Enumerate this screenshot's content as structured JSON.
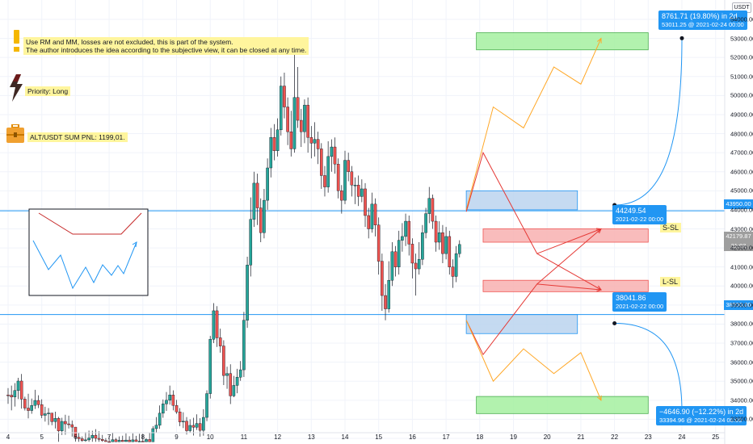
{
  "currency_badge": "USDT",
  "notes": {
    "rm_line1": "Use RM and MM, losses are not excluded, this is part of the system.",
    "rm_line2": "The author introduces the idea according to the subjective view, it can be closed at any time.",
    "priority": "Priority: Long",
    "pnl": "ALT/USDT SUM PNL: 1199,01."
  },
  "price_tags": {
    "upper_line": "43950.00",
    "current": "42179.87",
    "current_time": "21:02",
    "lower_line": "38500.00"
  },
  "levels": {
    "s_sl": "S-SL",
    "l_sl": "L-SL"
  },
  "callouts": {
    "up_change": "8761.71 (19.80%) in 2d",
    "up_target": "53011.25 @ 2021-02-24  00:00",
    "up_start_price": "44249.54",
    "up_start_time": "2021-02-22 00:00",
    "down_start_price": "38041.86",
    "down_start_time": "2021-02-22 00:00",
    "down_change": "−4646.90 (−12.22%) in 2d",
    "down_target": "33394.96 @ 2021-02-24  00:00"
  },
  "colors": {
    "up_candle": "#26a69a",
    "down_candle": "#ef5350",
    "level_line": "#2196f3",
    "current_tag": "#9e9e9e",
    "green_zone": "#a5f0a0",
    "red_zone": "#f8b0b0",
    "blue_zone": "#bbd4ee"
  },
  "chart_data": {
    "type": "candlestick",
    "x_ticks": [
      "4",
      "5",
      "6",
      "7",
      "8",
      "9",
      "10",
      "11",
      "12",
      "13",
      "14",
      "15",
      "16",
      "17",
      "18",
      "19",
      "20",
      "21",
      "22",
      "23",
      "24",
      "25"
    ],
    "y_ticks": [
      32000,
      33000,
      34000,
      35000,
      36000,
      37000,
      38000,
      39000,
      40000,
      41000,
      42000,
      43000,
      44000,
      45000,
      46000,
      47000,
      48000,
      49000,
      50000,
      51000,
      52000,
      53000,
      54000
    ],
    "ylim": [
      31800,
      54800
    ],
    "xlim": [
      4,
      25
    ],
    "candles": [
      [
        4.0,
        34280,
        34270,
        34640,
        33810
      ],
      [
        4.1,
        34270,
        34170,
        34770,
        33470
      ],
      [
        4.2,
        34170,
        34510,
        34900,
        33670
      ],
      [
        4.3,
        34510,
        35010,
        35180,
        34060
      ],
      [
        4.4,
        35010,
        34060,
        35380,
        33560
      ],
      [
        4.5,
        34060,
        33590,
        34190,
        33460
      ],
      [
        4.6,
        33590,
        33460,
        34340,
        33050
      ],
      [
        4.7,
        33460,
        33730,
        34090,
        33290
      ],
      [
        4.8,
        33730,
        33990,
        34550,
        33540
      ],
      [
        4.9,
        33990,
        33770,
        34260,
        33590
      ],
      [
        5.0,
        33770,
        33210,
        34050,
        33060
      ],
      [
        5.1,
        33210,
        33290,
        33660,
        32880
      ],
      [
        5.2,
        33290,
        33330,
        33590,
        32700
      ],
      [
        5.3,
        33330,
        32880,
        33230,
        32690
      ],
      [
        5.4,
        32880,
        33050,
        33400,
        32520
      ],
      [
        5.5,
        33050,
        32390,
        33130,
        31820
      ],
      [
        5.6,
        32390,
        32890,
        33080,
        32180
      ],
      [
        5.7,
        32890,
        32760,
        33240,
        32190
      ],
      [
        5.8,
        32760,
        32720,
        33190,
        32520
      ],
      [
        5.9,
        32720,
        32590,
        32940,
        32090
      ],
      [
        6.0,
        32590,
        32060,
        32560,
        31830
      ],
      [
        6.1,
        32060,
        31980,
        32300,
        31820
      ],
      [
        6.2,
        31980,
        31880,
        32100,
        31820
      ],
      [
        6.3,
        31880,
        31920,
        32330,
        31820
      ],
      [
        6.4,
        31920,
        32020,
        32410,
        31820
      ],
      [
        6.5,
        32020,
        32160,
        32400,
        31820
      ],
      [
        6.6,
        32160,
        32000,
        32480,
        31820
      ],
      [
        6.7,
        32000,
        31950,
        32370,
        31820
      ],
      [
        6.8,
        31950,
        31880,
        32180,
        31820
      ],
      [
        6.9,
        31880,
        31830,
        32010,
        31820
      ],
      [
        7.0,
        31830,
        31820,
        32140,
        31820
      ],
      [
        7.1,
        31820,
        31930,
        32290,
        31820
      ],
      [
        7.2,
        31930,
        31820,
        32020,
        31820
      ],
      [
        7.3,
        31820,
        31900,
        32100,
        31820
      ],
      [
        7.4,
        31900,
        31830,
        32140,
        31820
      ],
      [
        7.5,
        31830,
        31910,
        32260,
        31820
      ],
      [
        7.6,
        31910,
        31820,
        32110,
        31820
      ],
      [
        7.7,
        31820,
        31920,
        32260,
        31820
      ],
      [
        7.8,
        31920,
        31830,
        32130,
        31820
      ],
      [
        7.9,
        31830,
        31850,
        32240,
        31820
      ],
      [
        8.0,
        31850,
        31820,
        32240,
        31820
      ],
      [
        8.1,
        31820,
        31940,
        32010,
        31820
      ],
      [
        8.2,
        31940,
        31820,
        32280,
        31820
      ],
      [
        8.3,
        31820,
        32510,
        32640,
        31820
      ],
      [
        8.4,
        32510,
        32690,
        33120,
        32300
      ],
      [
        8.5,
        32690,
        33320,
        33730,
        32500
      ],
      [
        8.6,
        33320,
        33810,
        34040,
        33080
      ],
      [
        8.7,
        33810,
        34000,
        34430,
        33440
      ],
      [
        8.8,
        34000,
        34280,
        34770,
        33770
      ],
      [
        8.9,
        34280,
        33730,
        34520,
        33470
      ],
      [
        9.0,
        33730,
        33390,
        34020,
        33290
      ],
      [
        9.1,
        33390,
        32860,
        33590,
        32640
      ],
      [
        9.2,
        32860,
        32900,
        33370,
        32540
      ],
      [
        9.3,
        32900,
        32400,
        33120,
        32200
      ],
      [
        9.4,
        32400,
        32680,
        33000,
        32300
      ],
      [
        9.5,
        32680,
        32580,
        33080,
        32150
      ],
      [
        9.6,
        32580,
        32780,
        33260,
        32440
      ],
      [
        9.7,
        32780,
        32420,
        33060,
        32090
      ],
      [
        9.8,
        32420,
        33100,
        33530,
        32140
      ],
      [
        9.9,
        33100,
        34350,
        34520,
        32900
      ],
      [
        10.0,
        34350,
        37200,
        37380,
        34090
      ],
      [
        10.1,
        37200,
        38700,
        39100,
        37000
      ],
      [
        10.2,
        38700,
        37280,
        38940,
        36800
      ],
      [
        10.3,
        37280,
        36850,
        37760,
        36500
      ],
      [
        10.4,
        36850,
        35300,
        37150,
        34800
      ],
      [
        10.5,
        35300,
        35400,
        35760,
        34600
      ],
      [
        10.6,
        35400,
        34230,
        35890,
        33800
      ],
      [
        10.7,
        34230,
        34780,
        35280,
        34160
      ],
      [
        10.8,
        34780,
        35210,
        35650,
        34370
      ],
      [
        10.9,
        35210,
        35600,
        36060,
        35020
      ],
      [
        11.0,
        35600,
        38200,
        38640,
        35220
      ],
      [
        11.1,
        38200,
        41100,
        41540,
        37800
      ],
      [
        11.2,
        41100,
        43500,
        44650,
        40500
      ],
      [
        11.3,
        43500,
        45400,
        46000,
        43100
      ],
      [
        11.4,
        45400,
        44100,
        45900,
        43200
      ],
      [
        11.5,
        44100,
        42800,
        44600,
        42300
      ],
      [
        11.6,
        42800,
        44500,
        45100,
        42500
      ],
      [
        11.7,
        44500,
        46200,
        46700,
        44000
      ],
      [
        11.8,
        46200,
        47800,
        48300,
        45700
      ],
      [
        11.9,
        47800,
        47100,
        48500,
        46600
      ],
      [
        12.0,
        47100,
        48200,
        48800,
        46800
      ],
      [
        12.1,
        48200,
        50500,
        51000,
        47900
      ],
      [
        12.2,
        50500,
        49400,
        51200,
        48800
      ],
      [
        12.3,
        49400,
        48100,
        49900,
        47400
      ],
      [
        12.4,
        48100,
        47200,
        49200,
        46800
      ],
      [
        12.5,
        47200,
        49900,
        52500,
        47000
      ],
      [
        12.6,
        49900,
        48700,
        51500,
        48300
      ],
      [
        12.7,
        48700,
        48100,
        49300,
        47300
      ],
      [
        12.8,
        48100,
        49500,
        49800,
        47500
      ],
      [
        12.9,
        49500,
        47800,
        49900,
        47000
      ],
      [
        13.0,
        47800,
        47500,
        48400,
        46700
      ],
      [
        13.1,
        47500,
        47700,
        48600,
        46800
      ],
      [
        13.2,
        47700,
        47200,
        48100,
        46400
      ],
      [
        13.3,
        47200,
        45800,
        47500,
        45100
      ],
      [
        13.4,
        45800,
        45200,
        46300,
        44700
      ],
      [
        13.5,
        45200,
        46800,
        47600,
        44900
      ],
      [
        13.6,
        46800,
        47300,
        47700,
        46000
      ],
      [
        13.7,
        47300,
        46400,
        47800,
        45900
      ],
      [
        13.8,
        46400,
        45000,
        46700,
        44600
      ],
      [
        13.9,
        45000,
        44500,
        45300,
        43800
      ],
      [
        14.0,
        44500,
        46600,
        47100,
        44300
      ],
      [
        14.1,
        46600,
        46000,
        47000,
        45500
      ],
      [
        14.2,
        46000,
        45300,
        46300,
        44700
      ],
      [
        14.3,
        45300,
        45300,
        45700,
        44300
      ],
      [
        14.4,
        45300,
        44700,
        45800,
        44200
      ],
      [
        14.5,
        44700,
        45100,
        45600,
        44400
      ],
      [
        14.6,
        45100,
        43700,
        45400,
        43100
      ],
      [
        14.7,
        43700,
        43000,
        44100,
        42500
      ],
      [
        14.8,
        43000,
        44300,
        44900,
        42800
      ],
      [
        14.9,
        44300,
        43200,
        44600,
        42600
      ],
      [
        15.0,
        43200,
        41300,
        43600,
        40600
      ],
      [
        15.1,
        41300,
        39500,
        41700,
        38700
      ],
      [
        15.2,
        39500,
        38800,
        40100,
        38200
      ],
      [
        15.3,
        38800,
        40300,
        41300,
        38600
      ],
      [
        15.4,
        40300,
        41800,
        42300,
        40000
      ],
      [
        15.5,
        41800,
        41000,
        42100,
        40500
      ],
      [
        15.6,
        41000,
        42400,
        42900,
        40600
      ],
      [
        15.7,
        42400,
        42600,
        43300,
        41800
      ],
      [
        15.8,
        42600,
        43400,
        43800,
        42100
      ],
      [
        15.9,
        43400,
        42200,
        43700,
        41600
      ],
      [
        16.0,
        42200,
        41200,
        42500,
        40400
      ],
      [
        16.1,
        41200,
        40900,
        41700,
        39500
      ],
      [
        16.2,
        40900,
        41400,
        42300,
        40600
      ],
      [
        16.3,
        41400,
        42800,
        43200,
        41100
      ],
      [
        16.4,
        42800,
        43800,
        44100,
        42500
      ],
      [
        16.5,
        43800,
        44600,
        45200,
        43300
      ],
      [
        16.6,
        44600,
        43400,
        44800,
        43000
      ],
      [
        16.7,
        43400,
        42300,
        43700,
        41800
      ],
      [
        16.8,
        42300,
        42800,
        43400,
        41900
      ],
      [
        16.9,
        42800,
        41700,
        43200,
        41200
      ],
      [
        17.0,
        41700,
        42600,
        43100,
        41400
      ],
      [
        17.1,
        42600,
        41000,
        42900,
        40600
      ],
      [
        17.2,
        41000,
        40500,
        41400,
        39900
      ],
      [
        17.3,
        40500,
        41700,
        42100,
        40200
      ],
      [
        17.4,
        41700,
        42180,
        42400,
        41500
      ]
    ],
    "horizontal_levels": [
      43950,
      38500
    ],
    "zones": [
      {
        "kind": "green",
        "x": [
          17.9,
          23.0
        ],
        "y": [
          52400,
          53300
        ]
      },
      {
        "kind": "blue",
        "x": [
          17.6,
          20.9
        ],
        "y": [
          44000,
          45000
        ]
      },
      {
        "kind": "red",
        "x": [
          18.1,
          23.0
        ],
        "y": [
          42300,
          43000
        ],
        "label": "S-SL"
      },
      {
        "kind": "red",
        "x": [
          18.1,
          23.0
        ],
        "y": [
          39700,
          40300
        ],
        "label": "L-SL"
      },
      {
        "kind": "blue",
        "x": [
          17.6,
          20.9
        ],
        "y": [
          37500,
          38500
        ]
      },
      {
        "kind": "green",
        "x": [
          17.9,
          23.0
        ],
        "y": [
          33300,
          34200
        ]
      }
    ],
    "projections": [
      {
        "color": "orange",
        "points": [
          [
            17.6,
            44000
          ],
          [
            18.4,
            49400
          ],
          [
            19.3,
            48300
          ],
          [
            20.2,
            51500
          ],
          [
            21.0,
            50600
          ],
          [
            21.6,
            53000
          ]
        ]
      },
      {
        "color": "red",
        "points": [
          [
            17.6,
            43900
          ],
          [
            18.1,
            47000
          ],
          [
            19.7,
            41700
          ],
          [
            21.6,
            43000
          ]
        ]
      },
      {
        "color": "red",
        "points": [
          [
            17.6,
            38200
          ],
          [
            18.1,
            36400
          ],
          [
            19.7,
            40100
          ],
          [
            21.6,
            39800
          ]
        ]
      },
      {
        "color": "red",
        "points": [
          [
            19.7,
            41700
          ],
          [
            21.6,
            39800
          ]
        ]
      },
      {
        "color": "red",
        "points": [
          [
            19.7,
            40100
          ],
          [
            21.6,
            43000
          ]
        ]
      },
      {
        "color": "orange",
        "points": [
          [
            17.6,
            38200
          ],
          [
            18.4,
            35000
          ],
          [
            19.3,
            36700
          ],
          [
            20.2,
            35400
          ],
          [
            21.0,
            36500
          ],
          [
            21.6,
            34000
          ]
        ]
      }
    ],
    "measures": [
      {
        "from": [
          22.0,
          44249.54
        ],
        "to": [
          24.0,
          53011.25
        ]
      },
      {
        "from": [
          22.0,
          38041.86
        ],
        "to": [
          24.0,
          33394.96
        ]
      }
    ]
  }
}
